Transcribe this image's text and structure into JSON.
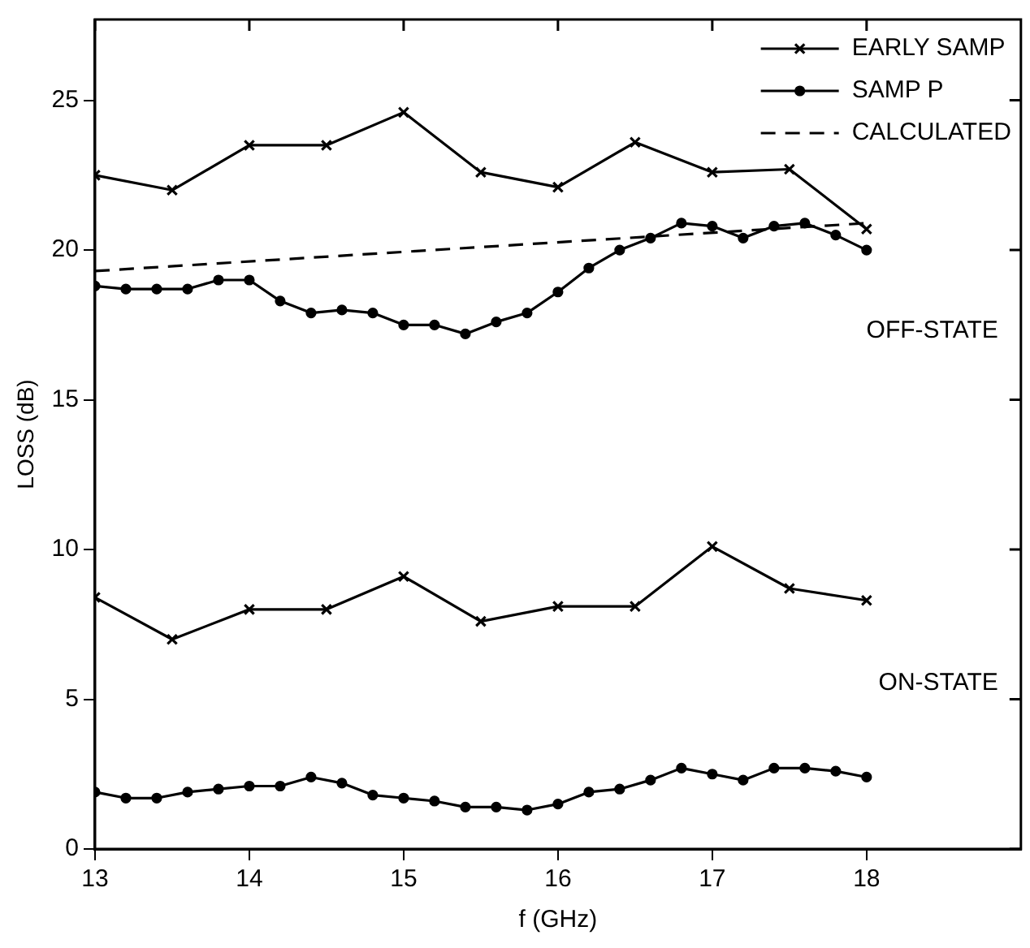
{
  "chart_data": {
    "type": "line",
    "xlabel": "f (GHz)",
    "ylabel": "LOSS (dB)",
    "xlim": [
      13,
      19
    ],
    "xticks": [
      13,
      14,
      15,
      16,
      17,
      18
    ],
    "ylim": [
      0,
      27.7
    ],
    "yticks": [
      0,
      5,
      10,
      15,
      20,
      25
    ],
    "grid": false,
    "legend": "top right",
    "series": [
      {
        "name": "EARLY SAMP",
        "color": "#000000",
        "marker": "cross",
        "line_style": "solid",
        "x": [
          13,
          13.5,
          14,
          14.5,
          15,
          15.5,
          16,
          16.5,
          17,
          17.5,
          18
        ],
        "values": [
          22.5,
          22.0,
          23.5,
          23.5,
          24.6,
          22.6,
          22.1,
          23.6,
          22.6,
          22.7,
          20.7
        ]
      },
      {
        "name": "SAMP P",
        "color": "#000000",
        "marker": "circle",
        "line_style": "solid",
        "x": [
          13,
          13.2,
          13.4,
          13.6,
          13.8,
          14,
          14.2,
          14.4,
          14.6,
          14.8,
          15,
          15.2,
          15.4,
          15.6,
          15.8,
          16,
          16.2,
          16.4,
          16.6,
          16.8,
          17,
          17.2,
          17.4,
          17.6,
          17.8,
          18
        ],
        "values": [
          18.8,
          18.7,
          18.7,
          18.7,
          19.0,
          19.0,
          18.3,
          17.9,
          18.0,
          17.9,
          17.5,
          17.5,
          17.2,
          17.6,
          17.9,
          18.6,
          19.4,
          20.0,
          20.4,
          20.9,
          20.8,
          20.4,
          20.8,
          20.9,
          20.5,
          20.0
        ]
      },
      {
        "name": "CALCULATED",
        "color": "#000000",
        "marker": "none",
        "line_style": "dashed",
        "x": [
          13,
          18
        ],
        "values": [
          19.3,
          20.9
        ]
      },
      {
        "color": "#000000",
        "marker": "cross",
        "line_style": "solid",
        "x": [
          13,
          13.5,
          14,
          14.5,
          15,
          15.5,
          16,
          16.5,
          17,
          17.5,
          18
        ],
        "values": [
          8.4,
          7.0,
          8.0,
          8.0,
          9.1,
          7.6,
          8.1,
          8.1,
          10.1,
          8.7,
          8.3
        ]
      },
      {
        "color": "#000000",
        "marker": "circle",
        "line_style": "solid",
        "x": [
          13,
          13.2,
          13.4,
          13.6,
          13.8,
          14,
          14.2,
          14.4,
          14.6,
          14.8,
          15,
          15.2,
          15.4,
          15.6,
          15.8,
          16,
          16.2,
          16.4,
          16.6,
          16.8,
          17,
          17.2,
          17.4,
          17.6,
          17.8,
          18
        ],
        "values": [
          1.9,
          1.7,
          1.7,
          1.9,
          2.0,
          2.1,
          2.1,
          2.4,
          2.2,
          1.8,
          1.7,
          1.6,
          1.4,
          1.4,
          1.3,
          1.5,
          1.9,
          2.0,
          2.3,
          2.7,
          2.5,
          2.3,
          2.7,
          2.7,
          2.6,
          2.4
        ]
      }
    ],
    "annotations": [
      "OFF-STATE",
      "ON-STATE"
    ]
  }
}
